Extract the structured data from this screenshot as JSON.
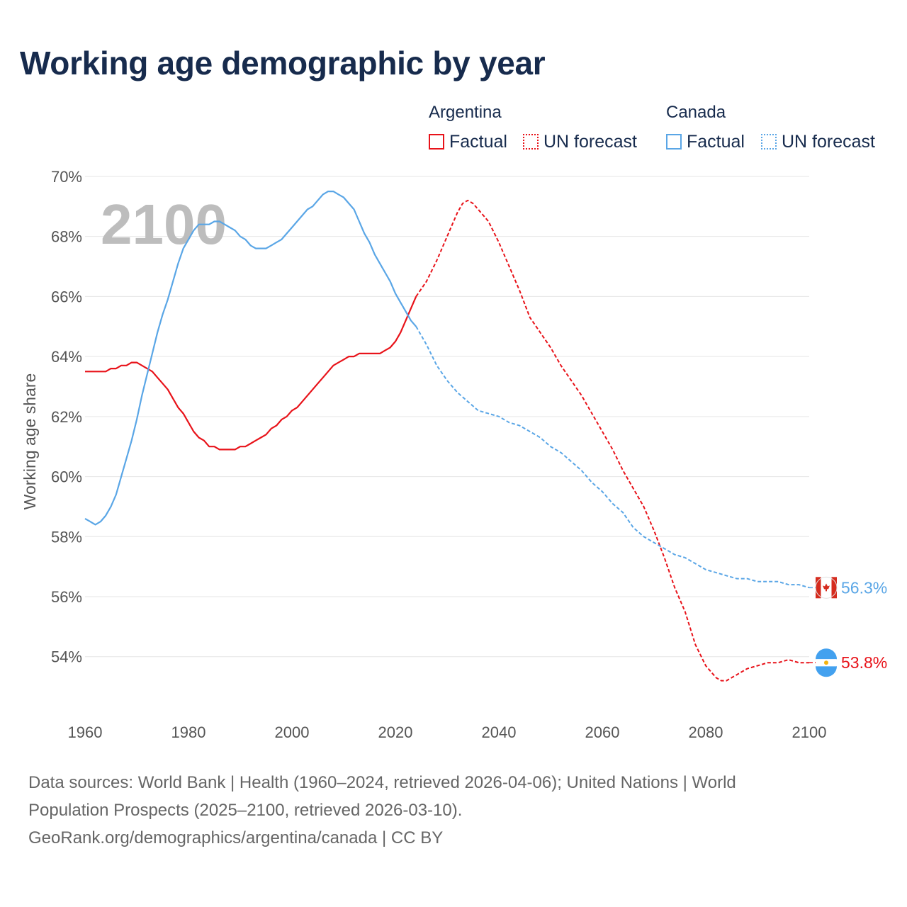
{
  "header": {
    "title": "Working age demographic by year"
  },
  "legend": {
    "groups": [
      {
        "name": "Argentina",
        "factual_label": "Factual",
        "forecast_label": "UN forecast",
        "color": "#e8131a"
      },
      {
        "name": "Canada",
        "factual_label": "Factual",
        "forecast_label": "UN forecast",
        "color": "#5aa6e6"
      }
    ]
  },
  "chart_data": {
    "type": "line",
    "title": "Working age demographic by year",
    "xlabel": "",
    "ylabel": "Working age share",
    "xlim": [
      1960,
      2100
    ],
    "ylim": [
      52.2,
      70.4
    ],
    "x_ticks": [
      1960,
      1980,
      2000,
      2020,
      2040,
      2060,
      2080,
      2100
    ],
    "y_ticks": [
      54,
      56,
      58,
      60,
      62,
      64,
      66,
      68,
      70
    ],
    "y_tick_labels": [
      "54%",
      "56%",
      "58%",
      "60%",
      "62%",
      "64%",
      "66%",
      "68%",
      "70%"
    ],
    "x_tick_labels": [
      "1960",
      "1980",
      "2000",
      "2020",
      "2040",
      "2060",
      "2080",
      "2100"
    ],
    "current_year_label": "2100",
    "grid": true,
    "series": [
      {
        "name": "Argentina",
        "color": "#e8131a",
        "end_label": "53.8%",
        "flag": "argentina",
        "factual_x": [
          1960,
          1962,
          1964,
          1965,
          1966,
          1967,
          1968,
          1969,
          1970,
          1971,
          1972,
          1973,
          1974,
          1975,
          1976,
          1977,
          1978,
          1979,
          1980,
          1981,
          1982,
          1983,
          1984,
          1985,
          1986,
          1987,
          1988,
          1989,
          1990,
          1991,
          1992,
          1993,
          1994,
          1995,
          1996,
          1997,
          1998,
          1999,
          2000,
          2001,
          2002,
          2003,
          2004,
          2005,
          2006,
          2007,
          2008,
          2009,
          2010,
          2011,
          2012,
          2013,
          2014,
          2015,
          2016,
          2017,
          2018,
          2019,
          2020,
          2021,
          2022,
          2023,
          2024
        ],
        "factual_y": [
          63.5,
          63.5,
          63.5,
          63.6,
          63.6,
          63.7,
          63.7,
          63.8,
          63.8,
          63.7,
          63.6,
          63.5,
          63.3,
          63.1,
          62.9,
          62.6,
          62.3,
          62.1,
          61.8,
          61.5,
          61.3,
          61.2,
          61.0,
          61.0,
          60.9,
          60.9,
          60.9,
          60.9,
          61.0,
          61.0,
          61.1,
          61.2,
          61.3,
          61.4,
          61.6,
          61.7,
          61.9,
          62.0,
          62.2,
          62.3,
          62.5,
          62.7,
          62.9,
          63.1,
          63.3,
          63.5,
          63.7,
          63.8,
          63.9,
          64.0,
          64.0,
          64.1,
          64.1,
          64.1,
          64.1,
          64.1,
          64.2,
          64.3,
          64.5,
          64.8,
          65.2,
          65.6,
          66.0
        ],
        "forecast_x": [
          2024,
          2026,
          2028,
          2030,
          2031,
          2032,
          2033,
          2034,
          2035,
          2036,
          2038,
          2040,
          2042,
          2044,
          2046,
          2048,
          2050,
          2052,
          2054,
          2056,
          2058,
          2060,
          2062,
          2064,
          2066,
          2068,
          2070,
          2072,
          2074,
          2076,
          2078,
          2080,
          2082,
          2083,
          2084,
          2085,
          2086,
          2088,
          2090,
          2092,
          2094,
          2096,
          2098,
          2100
        ],
        "forecast_y": [
          66.0,
          66.5,
          67.2,
          68.0,
          68.4,
          68.8,
          69.1,
          69.2,
          69.1,
          68.9,
          68.5,
          67.8,
          67.0,
          66.2,
          65.3,
          64.8,
          64.3,
          63.7,
          63.2,
          62.7,
          62.1,
          61.5,
          60.9,
          60.2,
          59.6,
          59.0,
          58.2,
          57.3,
          56.3,
          55.5,
          54.4,
          53.7,
          53.3,
          53.2,
          53.2,
          53.3,
          53.4,
          53.6,
          53.7,
          53.8,
          53.8,
          53.9,
          53.8,
          53.8
        ]
      },
      {
        "name": "Canada",
        "color": "#5aa6e6",
        "end_label": "56.3%",
        "flag": "canada",
        "factual_x": [
          1960,
          1961,
          1962,
          1963,
          1964,
          1965,
          1966,
          1967,
          1968,
          1969,
          1970,
          1971,
          1972,
          1973,
          1974,
          1975,
          1976,
          1977,
          1978,
          1979,
          1980,
          1981,
          1982,
          1983,
          1984,
          1985,
          1986,
          1987,
          1988,
          1989,
          1990,
          1991,
          1992,
          1993,
          1994,
          1995,
          1996,
          1997,
          1998,
          1999,
          2000,
          2001,
          2002,
          2003,
          2004,
          2005,
          2006,
          2007,
          2008,
          2009,
          2010,
          2011,
          2012,
          2013,
          2014,
          2015,
          2016,
          2017,
          2018,
          2019,
          2020,
          2021,
          2022,
          2023,
          2024
        ],
        "factual_y": [
          58.6,
          58.5,
          58.4,
          58.5,
          58.7,
          59.0,
          59.4,
          60.0,
          60.6,
          61.2,
          61.9,
          62.7,
          63.4,
          64.1,
          64.8,
          65.4,
          65.9,
          66.5,
          67.1,
          67.6,
          67.9,
          68.2,
          68.4,
          68.4,
          68.4,
          68.5,
          68.5,
          68.4,
          68.3,
          68.2,
          68.0,
          67.9,
          67.7,
          67.6,
          67.6,
          67.6,
          67.7,
          67.8,
          67.9,
          68.1,
          68.3,
          68.5,
          68.7,
          68.9,
          69.0,
          69.2,
          69.4,
          69.5,
          69.5,
          69.4,
          69.3,
          69.1,
          68.9,
          68.5,
          68.1,
          67.8,
          67.4,
          67.1,
          66.8,
          66.5,
          66.1,
          65.8,
          65.5,
          65.2,
          65.0
        ],
        "forecast_x": [
          2024,
          2026,
          2028,
          2030,
          2032,
          2034,
          2036,
          2038,
          2040,
          2042,
          2044,
          2046,
          2048,
          2050,
          2052,
          2054,
          2056,
          2058,
          2060,
          2062,
          2064,
          2066,
          2068,
          2070,
          2072,
          2074,
          2076,
          2078,
          2080,
          2082,
          2084,
          2086,
          2088,
          2090,
          2092,
          2094,
          2096,
          2098,
          2100
        ],
        "forecast_y": [
          65.0,
          64.4,
          63.7,
          63.2,
          62.8,
          62.5,
          62.2,
          62.1,
          62.0,
          61.8,
          61.7,
          61.5,
          61.3,
          61.0,
          60.8,
          60.5,
          60.2,
          59.8,
          59.5,
          59.1,
          58.8,
          58.3,
          58.0,
          57.8,
          57.6,
          57.4,
          57.3,
          57.1,
          56.9,
          56.8,
          56.7,
          56.6,
          56.6,
          56.5,
          56.5,
          56.5,
          56.4,
          56.4,
          56.3
        ]
      }
    ]
  },
  "footer": {
    "line1": "Data sources: World Bank | Health (1960–2024, retrieved 2026-04-06); United Nations | World",
    "line2": "Population Prospects (2025–2100, retrieved 2026-03-10).",
    "line3": "GeoRank.org/demographics/argentina/canada | CC BY"
  }
}
